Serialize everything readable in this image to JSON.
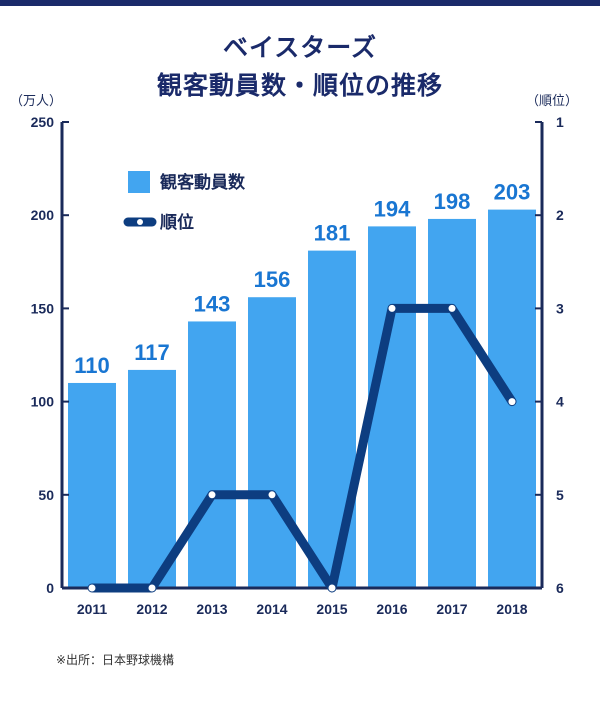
{
  "title_line1": "ベイスターズ",
  "title_line2": "観客動員数・順位の推移",
  "left_unit": "（万人）",
  "right_unit": "（順位）",
  "source": "※出所：日本野球機構",
  "colors": {
    "bar": "#42a5f0",
    "line": "#0d3d80",
    "axis": "#1a2a5a",
    "label": "#1976d2"
  },
  "chart_data": {
    "type": "bar",
    "categories": [
      "2011",
      "2012",
      "2013",
      "2014",
      "2015",
      "2016",
      "2017",
      "2018"
    ],
    "series": [
      {
        "name": "観客動員数",
        "type": "bar",
        "axis": "left",
        "values": [
          110,
          117,
          143,
          156,
          181,
          194,
          198,
          203
        ]
      },
      {
        "name": "順位",
        "type": "line",
        "axis": "right",
        "values": [
          6,
          6,
          5,
          5,
          6,
          3,
          3,
          4
        ]
      }
    ],
    "left_axis": {
      "ylim": [
        0,
        250
      ],
      "ticks": [
        "0",
        "50",
        "100",
        "150",
        "200",
        "250"
      ]
    },
    "right_axis": {
      "ylim": [
        1,
        6
      ],
      "inverted": true,
      "ticks": [
        "1",
        "2",
        "3",
        "4",
        "5",
        "6"
      ]
    },
    "legend": [
      "観客動員数",
      "順位"
    ]
  }
}
